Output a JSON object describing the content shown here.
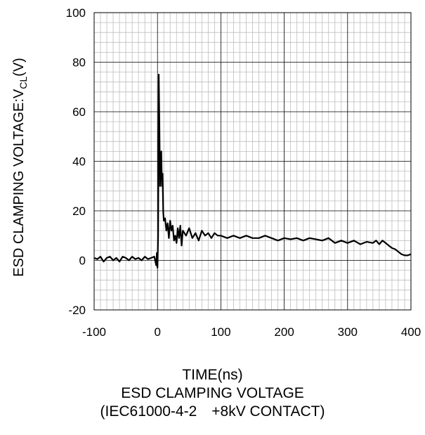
{
  "chart_data": {
    "type": "line",
    "x_label": "TIME(ns)",
    "y_label_main": "ESD CLAMPING VOLTAGE:V",
    "y_label_sub": "CL",
    "y_label_unit": "(V)",
    "caption_line1": "ESD CLAMPING VOLTAGE",
    "caption_line2": "(IEC61000-4-2　+8kV CONTACT)",
    "xlim": [
      -100,
      400
    ],
    "ylim": [
      -20,
      100
    ],
    "x_ticks": [
      "-100",
      "0",
      "100",
      "200",
      "300",
      "400"
    ],
    "y_ticks": [
      "-20",
      "0",
      "20",
      "40",
      "60",
      "80",
      "100"
    ],
    "grid": true,
    "series": [
      {
        "x": [
          -100,
          -95,
          -90,
          -85,
          -80,
          -75,
          -70,
          -65,
          -60,
          -55,
          -50,
          -45,
          -40,
          -35,
          -30,
          -25,
          -20,
          -15,
          -10,
          -5,
          -2,
          -1,
          0,
          1,
          2,
          3,
          4,
          5,
          6,
          7,
          8,
          9,
          10,
          12,
          14,
          16,
          18,
          20,
          22,
          24,
          26,
          28,
          30,
          32,
          34,
          36,
          38,
          40,
          45,
          50,
          55,
          60,
          65,
          70,
          75,
          80,
          85,
          90,
          95,
          100,
          110,
          120,
          130,
          140,
          150,
          160,
          170,
          180,
          190,
          200,
          210,
          220,
          230,
          240,
          250,
          260,
          270,
          280,
          290,
          300,
          310,
          320,
          330,
          340,
          345,
          350,
          355,
          360,
          365,
          370,
          375,
          380,
          385,
          390,
          395,
          400
        ],
        "y": [
          1,
          0.5,
          1.5,
          -0.5,
          1,
          1.5,
          0,
          1,
          -0.5,
          1.5,
          1,
          0,
          1.5,
          0.5,
          1,
          0,
          1.5,
          0.5,
          1,
          1.5,
          -2,
          3,
          -3,
          10,
          75,
          55,
          30,
          38,
          44,
          30,
          35,
          20,
          16,
          17,
          12,
          15,
          9,
          16,
          12,
          14,
          8,
          10,
          7,
          13,
          9,
          14,
          6,
          12,
          10,
          13,
          9,
          11,
          8,
          12,
          10,
          11,
          9,
          11,
          10,
          10,
          9,
          10,
          9,
          10,
          9,
          9,
          10,
          9,
          8,
          9,
          8.5,
          9,
          8,
          9,
          8.5,
          8,
          9,
          7,
          8,
          7,
          8,
          6.5,
          7.5,
          7,
          8,
          6.5,
          8,
          7,
          6,
          5,
          4.5,
          3.5,
          2.5,
          2,
          2,
          2.5
        ]
      }
    ]
  }
}
